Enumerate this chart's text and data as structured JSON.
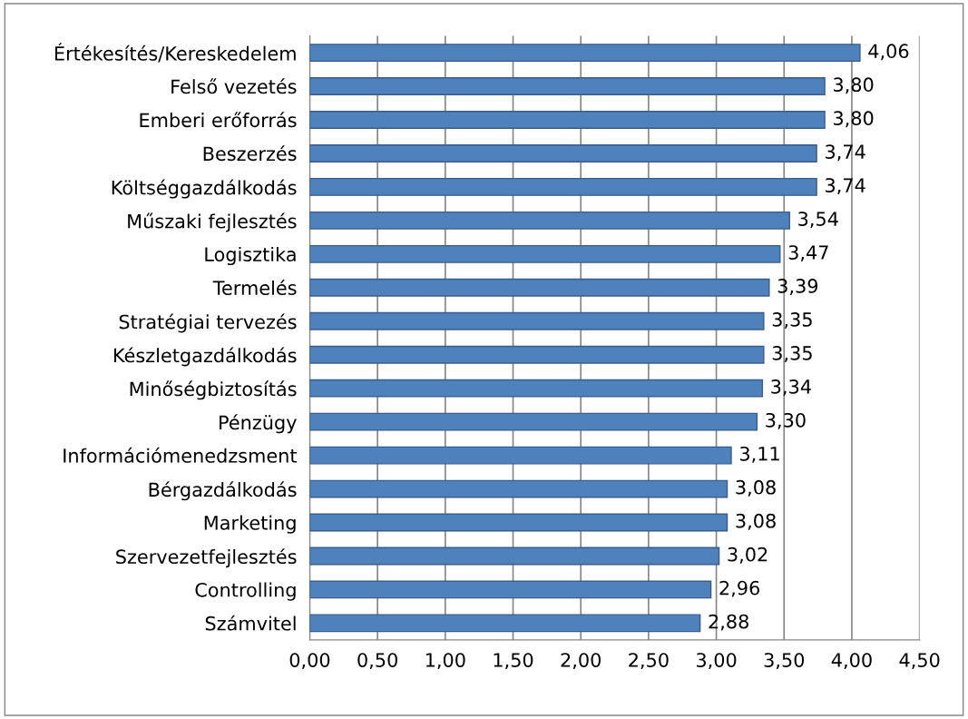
{
  "chart_data": {
    "type": "bar",
    "orientation": "horizontal",
    "categories": [
      "Értékesítés/Kereskedelem",
      "Felső vezetés",
      "Emberi erőforrás",
      "Beszerzés",
      "Költséggazdálkodás",
      "Műszaki fejlesztés",
      "Logisztika",
      "Termelés",
      "Stratégiai tervezés",
      "Készletgazdálkodás",
      "Minőségbiztosítás",
      "Pénzügy",
      "Információmenedzsment",
      "Bérgazdálkodás",
      "Marketing",
      "Szervezetfejlesztés",
      "Controlling",
      "Számvitel"
    ],
    "values": [
      4.06,
      3.8,
      3.8,
      3.74,
      3.74,
      3.54,
      3.47,
      3.39,
      3.35,
      3.35,
      3.34,
      3.3,
      3.11,
      3.08,
      3.08,
      3.02,
      2.96,
      2.88
    ],
    "value_labels": [
      "4,06",
      "3,80",
      "3,80",
      "3,74",
      "3,74",
      "3,54",
      "3,47",
      "3,39",
      "3,35",
      "3,35",
      "3,34",
      "3,30",
      "3,11",
      "3,08",
      "3,08",
      "3,02",
      "2,96",
      "2,88"
    ],
    "color": "#4f81bd",
    "xlim": [
      0,
      4.5
    ],
    "xticks": [
      {
        "value": 0,
        "label": "0,00"
      },
      {
        "value": 0.5,
        "label": "0,50"
      },
      {
        "value": 1,
        "label": "1,00"
      },
      {
        "value": 1.5,
        "label": "1,50"
      },
      {
        "value": 2,
        "label": "2,00"
      },
      {
        "value": 2.5,
        "label": "2,50"
      },
      {
        "value": 3,
        "label": "3,00"
      },
      {
        "value": 3.5,
        "label": "3,50"
      },
      {
        "value": 4,
        "label": "4,00"
      },
      {
        "value": 4.5,
        "label": "4,50"
      }
    ],
    "grid": "x"
  }
}
